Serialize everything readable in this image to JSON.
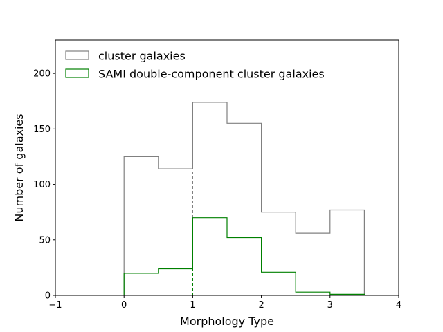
{
  "chart_data": {
    "type": "histogram-step",
    "xlabel": "Morphology Type",
    "ylabel": "Number of galaxies",
    "xlim": [
      -1,
      4
    ],
    "ylim": [
      0,
      230
    ],
    "xticks": [
      -1,
      0,
      1,
      2,
      3,
      4
    ],
    "yticks": [
      0,
      50,
      100,
      150,
      200
    ],
    "bin_edges": [
      0,
      0.5,
      1,
      1.5,
      2,
      2.5,
      3,
      3.5
    ],
    "grid": false,
    "legend_position": "top-left",
    "reference_line_x": 1,
    "series": [
      {
        "name": "cluster galaxies",
        "color": "#808080",
        "values": [
          125,
          114,
          174,
          155,
          75,
          56,
          77
        ]
      },
      {
        "name": "SAMI double-component cluster galaxies",
        "color": "#008000",
        "values": [
          20,
          24,
          70,
          52,
          21,
          3,
          1
        ]
      }
    ]
  }
}
